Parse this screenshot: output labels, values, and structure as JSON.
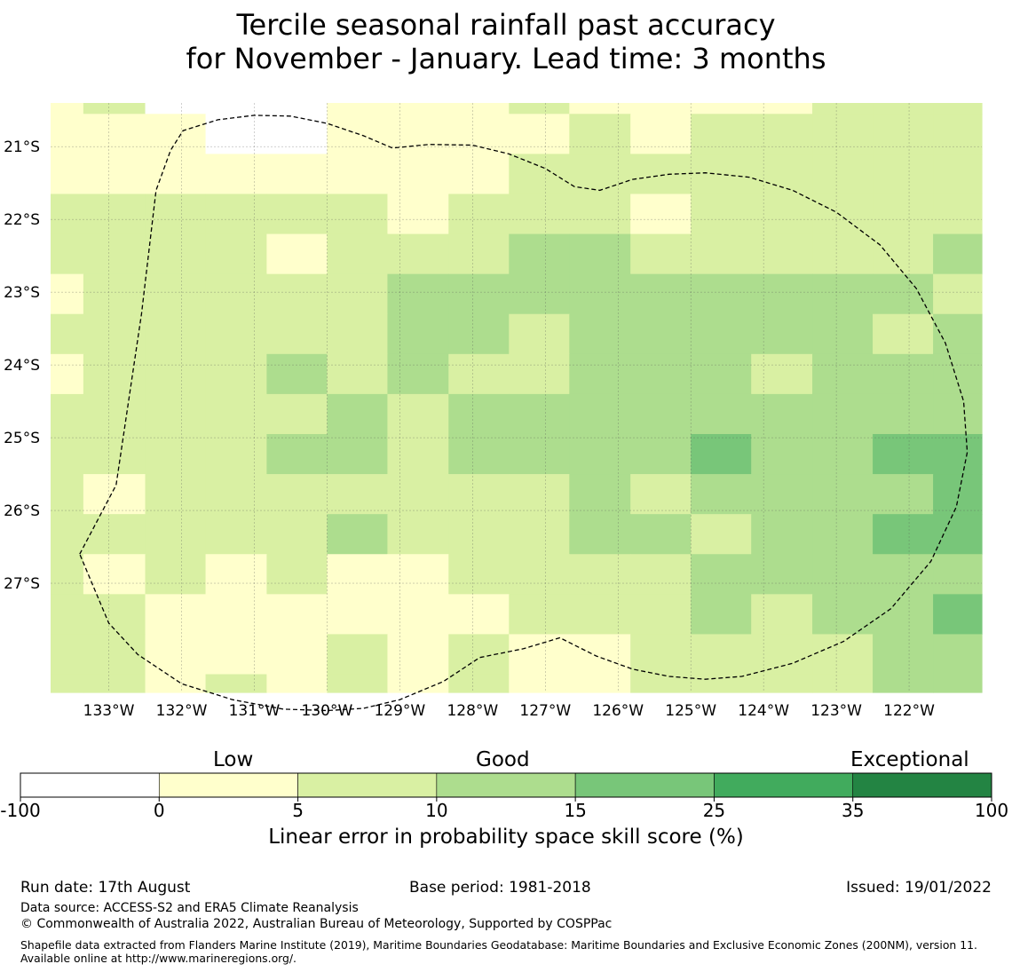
{
  "title": {
    "line1": "Tercile seasonal rainfall past accuracy",
    "line2": "for November - January. Lead time: 3 months"
  },
  "map": {
    "lon_min": -133.8,
    "lon_max": -121.0,
    "lat_min": -28.5,
    "lat_max": -20.4,
    "lon_ticks": [
      -133,
      -132,
      -131,
      -130,
      -129,
      -128,
      -127,
      -126,
      -125,
      -124,
      -123,
      -122
    ],
    "lon_tick_labels": [
      "133°W",
      "132°W",
      "131°W",
      "130°W",
      "129°W",
      "128°W",
      "127°W",
      "126°W",
      "125°W",
      "124°W",
      "123°W",
      "122°W"
    ],
    "lat_ticks": [
      -21,
      -22,
      -23,
      -24,
      -25,
      -26,
      -27
    ],
    "lat_tick_labels": [
      "21°S",
      "22°S",
      "23°S",
      "24°S",
      "25°S",
      "26°S",
      "27°S"
    ],
    "grid": true,
    "cell_colors": {
      "0": "#ffffff",
      "1": "#ffffcc",
      "2": "#d9f0a3",
      "3": "#addd8e",
      "4": "#78c679"
    },
    "row_lats": [
      [
        -20.4,
        -20.55
      ],
      [
        -20.55,
        -21.1
      ],
      [
        -21.1,
        -21.65
      ],
      [
        -21.65,
        -22.2
      ],
      [
        -22.2,
        -22.75
      ],
      [
        -22.75,
        -23.3
      ],
      [
        -23.3,
        -23.85
      ],
      [
        -23.85,
        -24.4
      ],
      [
        -24.4,
        -24.95
      ],
      [
        -24.95,
        -25.5
      ],
      [
        -25.5,
        -26.05
      ],
      [
        -26.05,
        -26.6
      ],
      [
        -26.6,
        -27.15
      ],
      [
        -27.15,
        -27.7
      ],
      [
        -27.7,
        -28.25
      ],
      [
        -28.25,
        -28.5
      ]
    ],
    "col_lons": [
      [
        -133.8,
        -133.35
      ],
      [
        -133.35,
        -132.5
      ],
      [
        -132.5,
        -131.67
      ],
      [
        -131.67,
        -130.83
      ],
      [
        -130.83,
        -130.0
      ],
      [
        -130.0,
        -129.17
      ],
      [
        -129.17,
        -128.33
      ],
      [
        -128.33,
        -127.5
      ],
      [
        -127.5,
        -126.67
      ],
      [
        -126.67,
        -125.83
      ],
      [
        -125.83,
        -125.0
      ],
      [
        -125.0,
        -124.17
      ],
      [
        -124.17,
        -123.33
      ],
      [
        -123.33,
        -122.5
      ],
      [
        -122.5,
        -121.67
      ],
      [
        -121.67,
        -121.0
      ]
    ],
    "cells": [
      [
        1,
        2,
        0,
        0,
        0,
        1,
        1,
        1,
        2,
        1,
        1,
        1,
        1,
        2,
        2,
        2
      ],
      [
        1,
        1,
        1,
        0,
        0,
        1,
        1,
        1,
        1,
        2,
        1,
        2,
        2,
        2,
        2,
        2
      ],
      [
        1,
        1,
        1,
        1,
        1,
        1,
        1,
        1,
        2,
        2,
        2,
        2,
        2,
        2,
        2,
        2
      ],
      [
        2,
        2,
        2,
        2,
        2,
        2,
        1,
        2,
        2,
        2,
        1,
        2,
        2,
        2,
        2,
        2
      ],
      [
        2,
        2,
        2,
        2,
        1,
        2,
        2,
        2,
        3,
        3,
        2,
        2,
        2,
        2,
        2,
        3
      ],
      [
        1,
        2,
        2,
        2,
        2,
        2,
        3,
        3,
        3,
        3,
        3,
        3,
        3,
        3,
        3,
        2
      ],
      [
        2,
        2,
        2,
        2,
        2,
        2,
        3,
        3,
        2,
        3,
        3,
        3,
        3,
        3,
        2,
        3
      ],
      [
        1,
        2,
        2,
        2,
        3,
        2,
        3,
        2,
        2,
        3,
        3,
        3,
        2,
        3,
        3,
        3
      ],
      [
        2,
        2,
        2,
        2,
        2,
        3,
        2,
        3,
        3,
        3,
        3,
        3,
        3,
        3,
        3,
        3
      ],
      [
        2,
        2,
        2,
        2,
        3,
        3,
        2,
        3,
        3,
        3,
        3,
        4,
        3,
        3,
        4,
        4
      ],
      [
        2,
        1,
        2,
        2,
        2,
        2,
        2,
        2,
        2,
        3,
        2,
        3,
        3,
        3,
        3,
        4
      ],
      [
        2,
        2,
        2,
        2,
        2,
        3,
        2,
        2,
        2,
        3,
        3,
        2,
        3,
        3,
        4,
        4
      ],
      [
        2,
        1,
        2,
        1,
        2,
        1,
        1,
        2,
        2,
        2,
        2,
        3,
        3,
        3,
        3,
        3
      ],
      [
        2,
        2,
        1,
        1,
        1,
        1,
        1,
        1,
        2,
        2,
        2,
        3,
        2,
        3,
        3,
        4
      ],
      [
        2,
        2,
        1,
        1,
        1,
        2,
        1,
        2,
        1,
        1,
        2,
        2,
        2,
        2,
        3,
        3
      ],
      [
        2,
        2,
        1,
        2,
        1,
        2,
        1,
        2,
        1,
        1,
        2,
        2,
        2,
        2,
        3,
        3
      ]
    ],
    "eez_boundary": [
      [
        -133.4,
        -26.6
      ],
      [
        -132.9,
        -25.65
      ],
      [
        -132.55,
        -23.3
      ],
      [
        -132.35,
        -21.6
      ],
      [
        -132.15,
        -21.05
      ],
      [
        -131.98,
        -20.78
      ],
      [
        -131.5,
        -20.63
      ],
      [
        -131.0,
        -20.57
      ],
      [
        -130.5,
        -20.58
      ],
      [
        -130.0,
        -20.68
      ],
      [
        -129.5,
        -20.85
      ],
      [
        -129.1,
        -21.02
      ],
      [
        -128.6,
        -20.97
      ],
      [
        -128.0,
        -20.98
      ],
      [
        -127.5,
        -21.1
      ],
      [
        -127.0,
        -21.3
      ],
      [
        -126.6,
        -21.55
      ],
      [
        -126.25,
        -21.6
      ],
      [
        -125.8,
        -21.45
      ],
      [
        -125.3,
        -21.38
      ],
      [
        -124.8,
        -21.36
      ],
      [
        -124.2,
        -21.42
      ],
      [
        -123.6,
        -21.6
      ],
      [
        -123.0,
        -21.9
      ],
      [
        -122.4,
        -22.35
      ],
      [
        -121.9,
        -22.95
      ],
      [
        -121.5,
        -23.7
      ],
      [
        -121.25,
        -24.5
      ],
      [
        -121.2,
        -25.2
      ],
      [
        -121.35,
        -25.95
      ],
      [
        -121.7,
        -26.7
      ],
      [
        -122.25,
        -27.35
      ],
      [
        -122.9,
        -27.8
      ],
      [
        -123.6,
        -28.1
      ],
      [
        -124.3,
        -28.28
      ],
      [
        -124.8,
        -28.32
      ],
      [
        -125.3,
        -28.28
      ],
      [
        -125.8,
        -28.18
      ],
      [
        -126.3,
        -28.0
      ],
      [
        -126.8,
        -27.75
      ],
      [
        -127.3,
        -27.9
      ],
      [
        -127.9,
        -28.02
      ],
      [
        -128.4,
        -28.35
      ],
      [
        -129.0,
        -28.6
      ],
      [
        -129.5,
        -28.72
      ],
      [
        -130.0,
        -28.75
      ],
      [
        -130.6,
        -28.73
      ],
      [
        -131.3,
        -28.6
      ],
      [
        -132.0,
        -28.38
      ],
      [
        -132.6,
        -27.98
      ],
      [
        -133.0,
        -27.55
      ],
      [
        -133.4,
        -26.6
      ]
    ]
  },
  "colorbar": {
    "categories": [
      "Low",
      "Good",
      "Exceptional"
    ],
    "ticks": [
      "-100",
      "0",
      "5",
      "10",
      "15",
      "25",
      "35",
      "100"
    ],
    "colors": [
      "#ffffff",
      "#ffffcc",
      "#d9f0a3",
      "#addd8e",
      "#78c679",
      "#41ab5d",
      "#238443"
    ],
    "label": "Linear error in probability space skill score (%)"
  },
  "footer": {
    "run_date": "Run date: 17th August",
    "base_period": "Base period: 1981-2018",
    "issued": "Issued: 19/01/2022",
    "data_source": "Data source: ACCESS-S2 and ERA5 Climate Reanalysis",
    "copyright": "© Commonwealth of Australia 2022, Australian Bureau of Meteorology, Supported by COSPPac",
    "shapefile": "Shapefile data extracted from Flanders Marine Institute (2019), Maritime Boundaries Geodatabase: Maritime Boundaries and Exclusive Economic Zones (200NM), version 11. Available online at http://www.marineregions.org/."
  }
}
